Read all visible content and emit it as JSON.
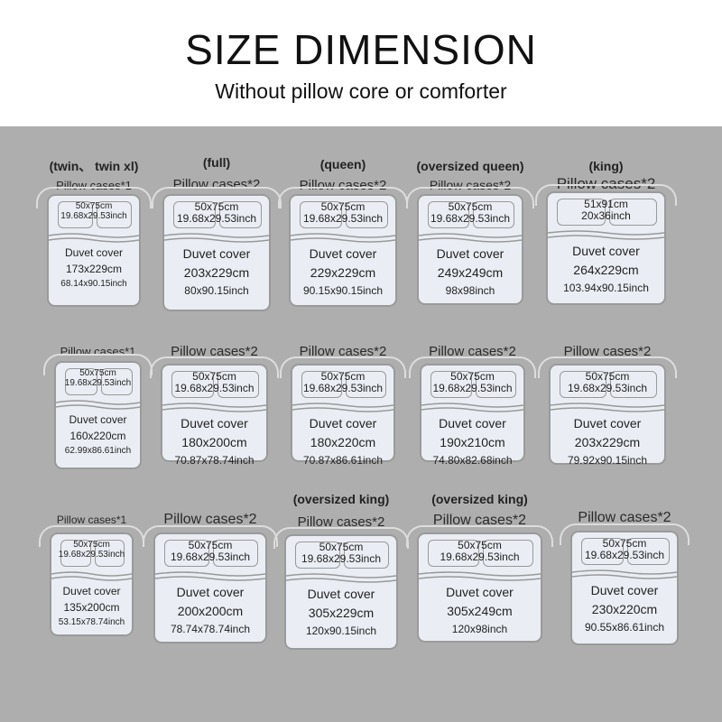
{
  "header": {
    "title": "SIZE DIMENSION",
    "subtitle": "Without pillow core or comforter"
  },
  "colors": {
    "background": "#aeaeae",
    "card": "#eaeef4"
  },
  "cards": [
    {
      "size": "(twin、 twin xl)",
      "pillow_title": "Pillow cases*1",
      "pillow_cm": "50x75cm",
      "pillow_inch": "19.68x29.53inch",
      "duvet_label": "Duvet cover",
      "duvet_cm": "173x229cm",
      "duvet_inch": "68.14x90.15inch"
    },
    {
      "size": "(full)",
      "pillow_title": "Pillow cases*2",
      "pillow_cm": "50x75cm",
      "pillow_inch": "19.68x29.53inch",
      "duvet_label": "Duvet cover",
      "duvet_cm": "203x229cm",
      "duvet_inch": "80x90.15inch"
    },
    {
      "size": "(queen)",
      "pillow_title": "Pillow cases*2",
      "pillow_cm": "50x75cm",
      "pillow_inch": "19.68x29.53inch",
      "duvet_label": "Duvet cover",
      "duvet_cm": "229x229cm",
      "duvet_inch": "90.15x90.15inch"
    },
    {
      "size": "(oversized queen)",
      "pillow_title": "Pillow cases*2",
      "pillow_cm": "50x75cm",
      "pillow_inch": "19.68x29.53inch",
      "duvet_label": "Duvet cover",
      "duvet_cm": "249x249cm",
      "duvet_inch": "98x98inch"
    },
    {
      "size": "(king)",
      "pillow_title": "Pillow cases*2",
      "pillow_cm": "51x91cm",
      "pillow_inch": "20x36inch",
      "duvet_label": "Duvet cover",
      "duvet_cm": "264x229cm",
      "duvet_inch": "103.94x90.15inch"
    },
    {
      "size": "",
      "pillow_title": "Pillow cases*1",
      "pillow_cm": "50x75cm",
      "pillow_inch": "19.68x29.53inch",
      "duvet_label": "Duvet cover",
      "duvet_cm": "160x220cm",
      "duvet_inch": "62.99x86.61inch"
    },
    {
      "size": "",
      "pillow_title": "Pillow cases*2",
      "pillow_cm": "50x75cm",
      "pillow_inch": "19.68x29.53inch",
      "duvet_label": "Duvet cover",
      "duvet_cm": "180x200cm",
      "duvet_inch": "70.87x78.74inch"
    },
    {
      "size": "",
      "pillow_title": "Pillow cases*2",
      "pillow_cm": "50x75cm",
      "pillow_inch": "19.68x29.53inch",
      "duvet_label": "Duvet cover",
      "duvet_cm": "180x220cm",
      "duvet_inch": "70.87x86.61inch"
    },
    {
      "size": "",
      "pillow_title": "Pillow cases*2",
      "pillow_cm": "50x75cm",
      "pillow_inch": "19.68x29.53inch",
      "duvet_label": "Duvet cover",
      "duvet_cm": "190x210cm",
      "duvet_inch": "74.80x82.68inch"
    },
    {
      "size": "",
      "pillow_title": "Pillow cases*2",
      "pillow_cm": "50x75cm",
      "pillow_inch": "19.68x29.53inch",
      "duvet_label": "Duvet cover",
      "duvet_cm": "203x229cm",
      "duvet_inch": "79.92x90.15inch"
    },
    {
      "size": "",
      "pillow_title": "Pillow cases*1",
      "pillow_cm": "50x75cm",
      "pillow_inch": "19.68x29.53inch",
      "duvet_label": "Duvet cover",
      "duvet_cm": "135x200cm",
      "duvet_inch": "53.15x78.74inch"
    },
    {
      "size": "",
      "pillow_title": "Pillow cases*2",
      "pillow_cm": "50x75cm",
      "pillow_inch": "19.68x29.53inch",
      "duvet_label": "Duvet cover",
      "duvet_cm": "200x200cm",
      "duvet_inch": "78.74x78.74inch"
    },
    {
      "size": "(oversized king)",
      "pillow_title": "Pillow cases*2",
      "pillow_cm": "50x75cm",
      "pillow_inch": "19.68x29.53inch",
      "duvet_label": "Duvet cover",
      "duvet_cm": "305x229cm",
      "duvet_inch": "120x90.15inch"
    },
    {
      "size": "(oversized king)",
      "pillow_title": "Pillow cases*2",
      "pillow_cm": "50x75cm",
      "pillow_inch": "19.68x29.53inch",
      "duvet_label": "Duvet cover",
      "duvet_cm": "305x249cm",
      "duvet_inch": "120x98inch"
    },
    {
      "size": "",
      "pillow_title": "Pillow cases*2",
      "pillow_cm": "50x75cm",
      "pillow_inch": "19.68x29.53inch",
      "duvet_label": "Duvet cover",
      "duvet_cm": "230x220cm",
      "duvet_inch": "90.55x86.61inch"
    }
  ]
}
